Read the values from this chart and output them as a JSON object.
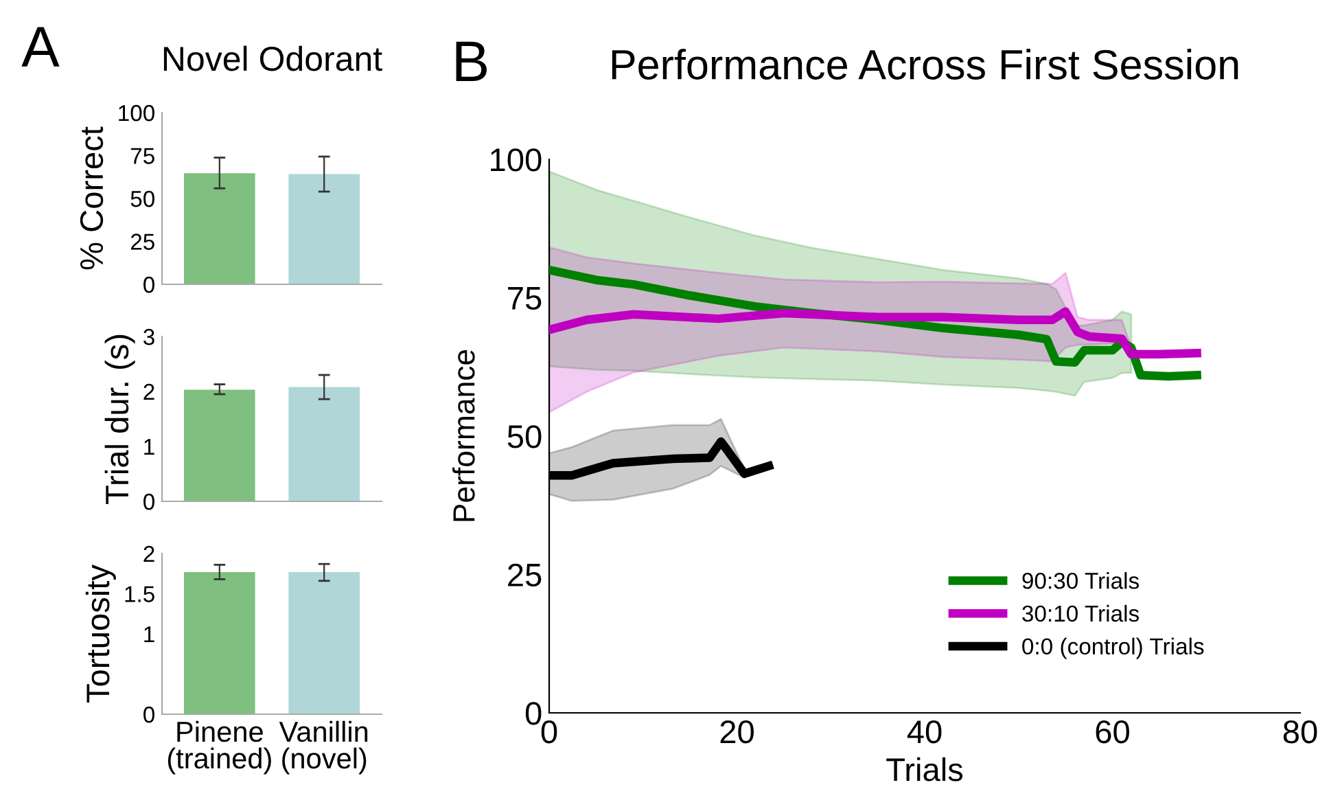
{
  "chart_data": [
    {
      "type": "bar",
      "title": "Novel Odorant",
      "annotations": [
        "A"
      ],
      "ylabel": "% Correct",
      "categories": [
        null,
        null
      ],
      "values": [
        64.7,
        64.2
      ],
      "colors": [
        "#7fbf7f",
        "#b0d6d8"
      ],
      "errors": [
        [
          55.9,
          73.8
        ],
        [
          54,
          74.4
        ]
      ],
      "ylim": [
        0,
        100
      ],
      "yticks": [
        0,
        25,
        50,
        75,
        100
      ],
      "grid": false
    },
    {
      "type": "bar",
      "ylabel": "Trial dur. (s)",
      "categories": [
        null,
        null
      ],
      "values": [
        2.03,
        2.08
      ],
      "colors": [
        "#7fbf7f",
        "#b0d6d8"
      ],
      "errors": [
        [
          1.95,
          2.13
        ],
        [
          1.86,
          2.3
        ]
      ],
      "ylim": [
        0,
        3
      ],
      "yticks": [
        0,
        1,
        2,
        3
      ],
      "grid": false
    },
    {
      "type": "bar",
      "ylabel": "Tortuosity",
      "categories": [
        "Pinene\n(trained)",
        "Vanillin\n(novel)"
      ],
      "values": [
        1.77,
        1.77
      ],
      "colors": [
        "#7fbf7f",
        "#b0d6d8"
      ],
      "errors": [
        [
          1.68,
          1.86
        ],
        [
          1.66,
          1.87
        ]
      ],
      "ylim": [
        0,
        2
      ],
      "yticks": [
        0,
        1,
        1.5,
        2
      ],
      "grid": false
    },
    {
      "type": "line",
      "title": "Performance Across First Session",
      "annotations": [
        "B"
      ],
      "xlabel": "Trials",
      "ylabel": "Performance",
      "xlim": [
        0,
        80
      ],
      "xticks": [
        0,
        20,
        40,
        60,
        80
      ],
      "ylim": [
        0,
        100
      ],
      "yticks": [
        0,
        25,
        50,
        75,
        100
      ],
      "grid": false,
      "legend": "bottom right",
      "line_style": "solid",
      "marker": "none",
      "series": [
        {
          "name": "90:30 Trials",
          "color": "#008000",
          "x": [
            0,
            5,
            9,
            15,
            22,
            28,
            35,
            42,
            50,
            53,
            54,
            56,
            57,
            60,
            61,
            62,
            63,
            66,
            69
          ],
          "values": [
            80,
            78.2,
            77.4,
            75.4,
            73.4,
            72.2,
            71,
            69.5,
            68.3,
            67.5,
            63.5,
            63.3,
            65.5,
            65.5,
            67,
            66,
            61,
            60.8,
            61
          ],
          "upper": [
            97.8,
            94.5,
            92.5,
            89.5,
            86.2,
            84,
            82,
            80,
            78.5,
            77.5,
            76.5,
            70,
            70,
            71,
            72.5,
            72,
            null,
            null,
            null
          ],
          "lower": [
            62.6,
            62,
            61.8,
            61.2,
            60.6,
            60.3,
            60,
            59.3,
            58.7,
            58.2,
            58,
            57.3,
            59.8,
            60.5,
            61.4,
            61.4,
            null,
            null,
            null
          ]
        },
        {
          "name": "30:10 Trials",
          "color": "#c000c0",
          "x": [
            0,
            4,
            9,
            18,
            25,
            35,
            42,
            50,
            53.6,
            55,
            56.3,
            57.5,
            61,
            62,
            65,
            69
          ],
          "values": [
            69.2,
            71,
            72,
            71.2,
            72.2,
            71.5,
            71.5,
            71,
            71,
            72.5,
            68.8,
            68,
            67.6,
            64.8,
            64.8,
            65
          ],
          "upper": [
            84.1,
            82.3,
            81.2,
            79.5,
            78.3,
            77.8,
            77.9,
            77.6,
            77.5,
            79.5,
            71.5,
            71,
            71,
            66,
            null,
            null
          ],
          "lower": [
            54.3,
            58,
            61.5,
            64.5,
            66,
            65.3,
            64.3,
            63.8,
            63.5,
            66,
            66.5,
            66.5,
            66.8,
            64.8,
            null,
            null
          ]
        },
        {
          "name": "0:0 (control) Trials",
          "color": "#000000",
          "x": [
            0,
            2.4,
            6.8,
            13.2,
            17.1,
            18.3,
            20.8,
            23.4
          ],
          "values": [
            42.9,
            42.9,
            45.1,
            45.9,
            46.1,
            49,
            43.2,
            44.6
          ],
          "upper": [
            46.9,
            48,
            51,
            52,
            52,
            53.1,
            44,
            null
          ],
          "lower": [
            39.5,
            38.3,
            38.5,
            40.5,
            43,
            44.6,
            42.5,
            null
          ]
        }
      ]
    }
  ]
}
